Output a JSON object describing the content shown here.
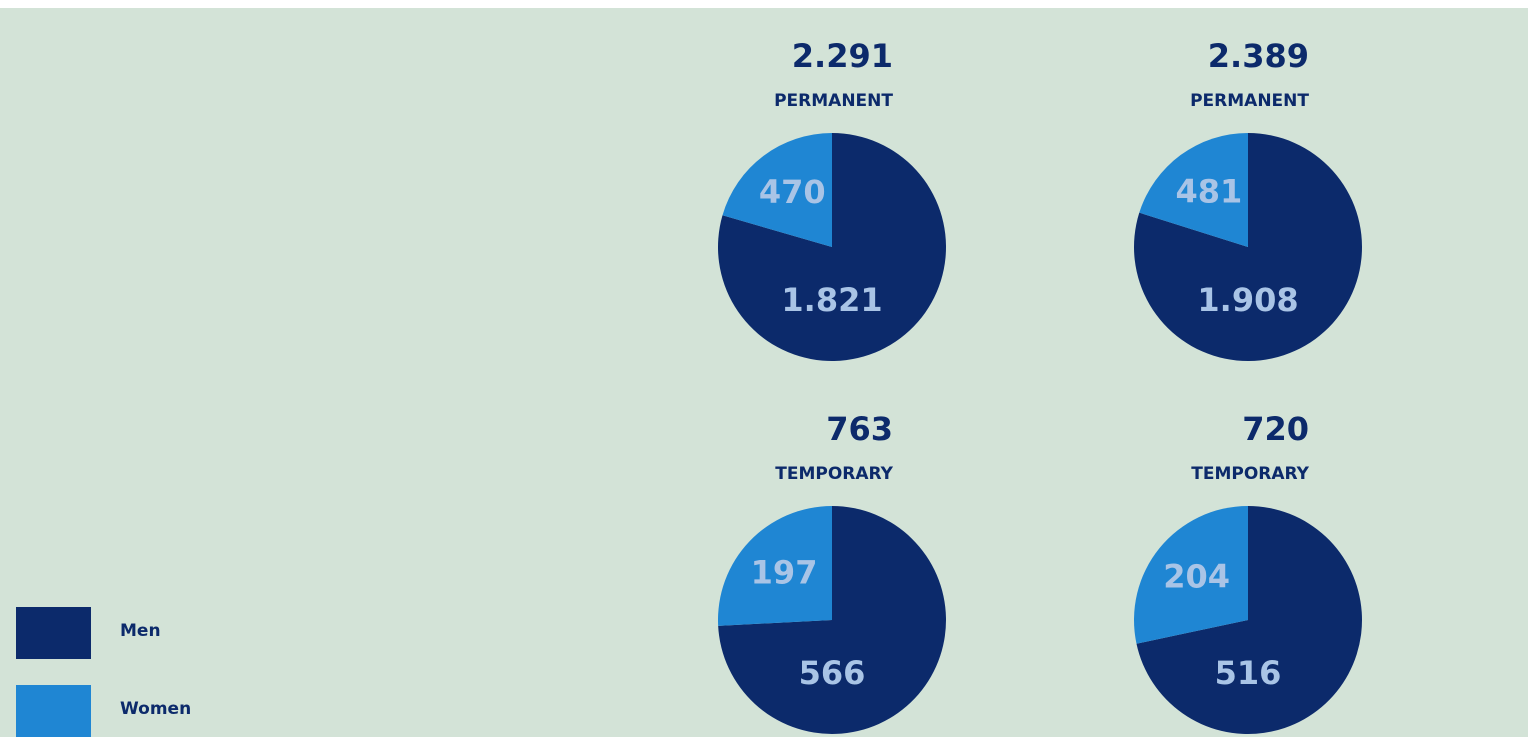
{
  "chart_data": [
    {
      "type": "pie",
      "title": "2.291",
      "subtitle": "PERMANENT",
      "categories": [
        "Men",
        "Women"
      ],
      "values": [
        1821,
        470
      ],
      "value_labels": [
        "1.821",
        "470"
      ],
      "colors": [
        "#0c2a6b",
        "#1f86d3"
      ]
    },
    {
      "type": "pie",
      "title": "2.389",
      "subtitle": "PERMANENT",
      "categories": [
        "Men",
        "Women"
      ],
      "values": [
        1908,
        481
      ],
      "value_labels": [
        "1.908",
        "481"
      ],
      "colors": [
        "#0c2a6b",
        "#1f86d3"
      ]
    },
    {
      "type": "pie",
      "title": "763",
      "subtitle": "TEMPORARY",
      "categories": [
        "Men",
        "Women"
      ],
      "values": [
        566,
        197
      ],
      "value_labels": [
        "566",
        "197"
      ],
      "colors": [
        "#0c2a6b",
        "#1f86d3"
      ]
    },
    {
      "type": "pie",
      "title": "720",
      "subtitle": "TEMPORARY",
      "categories": [
        "Men",
        "Women"
      ],
      "values": [
        516,
        204
      ],
      "value_labels": [
        "516",
        "204"
      ],
      "colors": [
        "#0c2a6b",
        "#1f86d3"
      ]
    }
  ]
}
